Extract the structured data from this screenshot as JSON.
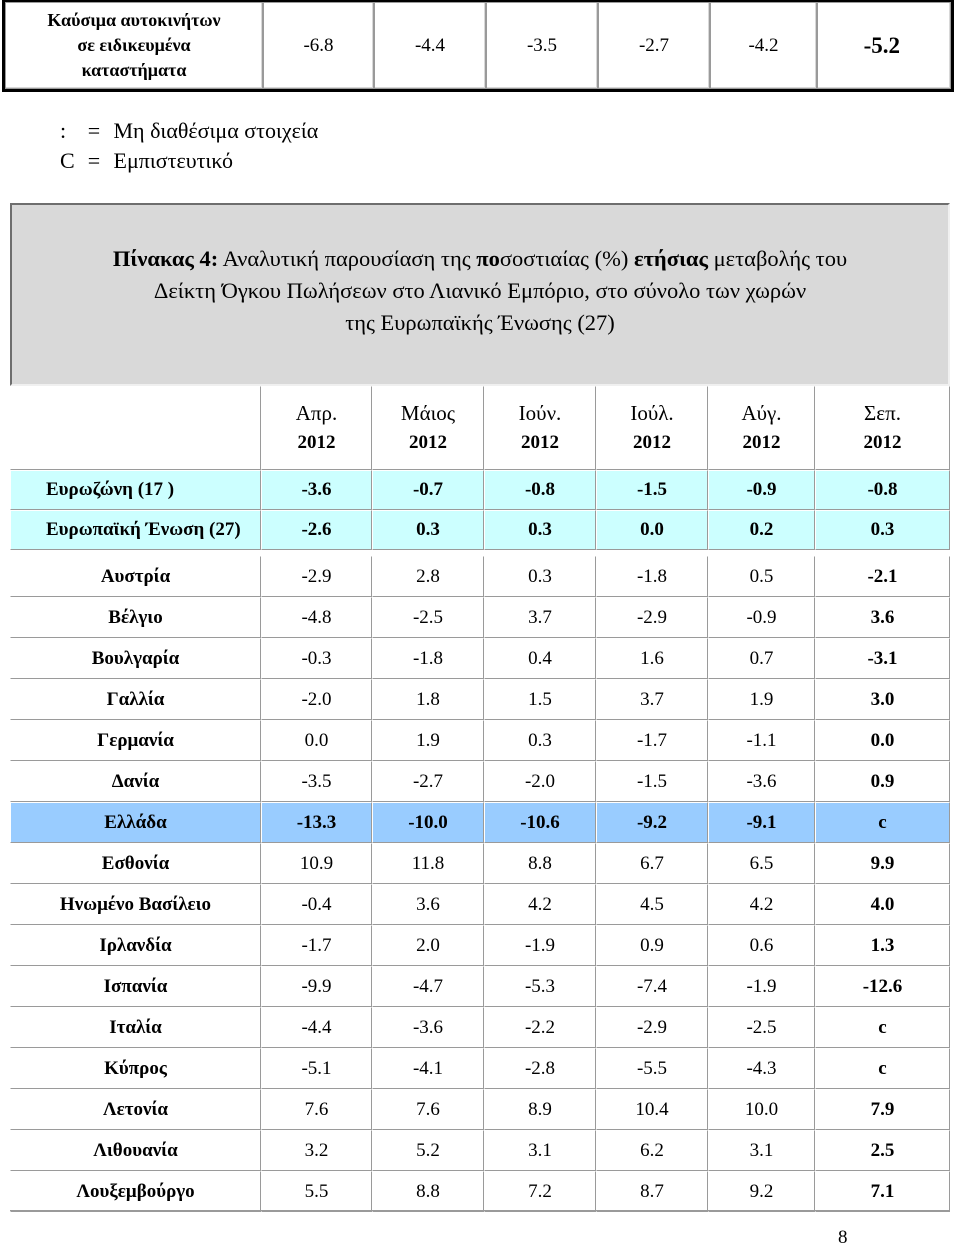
{
  "top_row": {
    "label": [
      "Καύσιμα αυτοκινήτων",
      "σε ειδικευμένα",
      "καταστήματα"
    ],
    "values": [
      "-6.8",
      "-4.4",
      "-3.5",
      "-2.7",
      "-4.2",
      "-5.2"
    ]
  },
  "legend": [
    {
      "symbol": ":",
      "eq": "=",
      "text": "Μη διαθέσιμα στοιχεία"
    },
    {
      "symbol": "C",
      "eq": "=",
      "text": "Εμπιστευτικό"
    }
  ],
  "caption": {
    "label": "Πίνακας 4:",
    "part1": " Αναλυτική παρουσίαση της ",
    "bold_po": "πο",
    "part2": "σοστιαίας (%) ",
    "bold_annual": "ετήσιας",
    "part3": " μεταβολής του",
    "line2": "Δείκτη Όγκου Πωλήσεων στο Λιανικό Εμπόριο, στο σύνολο των χωρών",
    "line3": "της  Ευρωπαϊκής Ένωσης (27)"
  },
  "columns": [
    {
      "month": "Απρ.",
      "year": "2012"
    },
    {
      "month": "Μάιος",
      "year": "2012"
    },
    {
      "month": "Ιούν.",
      "year": "2012"
    },
    {
      "month": "Ιούλ.",
      "year": "2012"
    },
    {
      "month": "Αύγ.",
      "year": "2012"
    },
    {
      "month": "Σεπ.",
      "year": "2012"
    }
  ],
  "aggregates": [
    {
      "name": "Ευρωζώνη  (17 )",
      "values": [
        "-3.6",
        "-0.7",
        "-0.8",
        "-1.5",
        "-0.9",
        "-0.8"
      ]
    },
    {
      "name": "Ευρωπαϊκή Ένωση  (27)",
      "values": [
        "-2.6",
        "0.3",
        "0.3",
        "0.0",
        "0.2",
        "0.3"
      ]
    }
  ],
  "countries": [
    {
      "name": "Αυστρία",
      "values": [
        "-2.9",
        "2.8",
        "0.3",
        "-1.8",
        "0.5",
        "-2.1"
      ]
    },
    {
      "name": "Βέλγιο",
      "values": [
        "-4.8",
        "-2.5",
        "3.7",
        "-2.9",
        "-0.9",
        "3.6"
      ]
    },
    {
      "name": "Βουλγαρία",
      "values": [
        "-0.3",
        "-1.8",
        "0.4",
        "1.6",
        "0.7",
        "-3.1"
      ]
    },
    {
      "name": "Γαλλία",
      "values": [
        "-2.0",
        "1.8",
        "1.5",
        "3.7",
        "1.9",
        "3.0"
      ]
    },
    {
      "name": "Γερμανία",
      "values": [
        "0.0",
        "1.9",
        "0.3",
        "-1.7",
        "-1.1",
        "0.0"
      ]
    },
    {
      "name": "Δανία",
      "values": [
        "-3.5",
        "-2.7",
        "-2.0",
        "-1.5",
        "-3.6",
        "0.9"
      ]
    },
    {
      "name": "Ελλάδα",
      "values": [
        "-13.3",
        "-10.0",
        "-10.6",
        "-9.2",
        "-9.1",
        "c"
      ],
      "highlight": true
    },
    {
      "name": "Εσθονία",
      "values": [
        "10.9",
        "11.8",
        "8.8",
        "6.7",
        "6.5",
        "9.9"
      ]
    },
    {
      "name": "Ηνωμένο Βασίλειο",
      "values": [
        "-0.4",
        "3.6",
        "4.2",
        "4.5",
        "4.2",
        "4.0"
      ]
    },
    {
      "name": "Ιρλανδία",
      "values": [
        "-1.7",
        "2.0",
        "-1.9",
        "0.9",
        "0.6",
        "1.3"
      ]
    },
    {
      "name": "Ισπανία",
      "values": [
        "-9.9",
        "-4.7",
        "-5.3",
        "-7.4",
        "-1.9",
        "-12.6"
      ]
    },
    {
      "name": "Ιταλία",
      "values": [
        "-4.4",
        "-3.6",
        "-2.2",
        "-2.9",
        "-2.5",
        "c"
      ]
    },
    {
      "name": "Κύπρος",
      "values": [
        "-5.1",
        "-4.1",
        "-2.8",
        "-5.5",
        "-4.3",
        "c"
      ]
    },
    {
      "name": "Λετονία",
      "values": [
        "7.6",
        "7.6",
        "8.9",
        "10.4",
        "10.0",
        "7.9"
      ]
    },
    {
      "name": "Λιθουανία",
      "values": [
        "3.2",
        "5.2",
        "3.1",
        "6.2",
        "3.1",
        "2.5"
      ]
    },
    {
      "name": "Λουξεμβούργο",
      "values": [
        "5.5",
        "8.8",
        "7.2",
        "8.7",
        "9.2",
        "7.1"
      ]
    }
  ],
  "page_number": "8",
  "colors": {
    "aggregate_bg": "#ccffff",
    "greece_bg": "#99ccff",
    "caption_bg": "#d9d9d9"
  }
}
